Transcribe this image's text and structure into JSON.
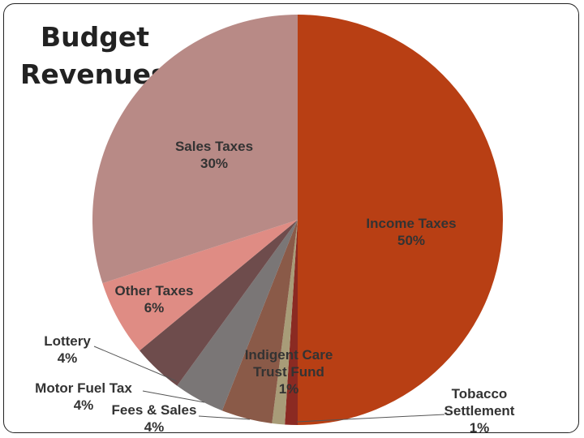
{
  "chart_data": {
    "type": "pie",
    "title_lines": [
      "Budget",
      "Revenues"
    ],
    "slices": [
      {
        "label_lines": [
          "Income Taxes",
          "50%"
        ],
        "value": 50,
        "color": "#b83f14"
      },
      {
        "label_lines": [
          "Tobacco",
          "Settlement",
          "1%"
        ],
        "value": 1,
        "color": "#8b2a22"
      },
      {
        "label_lines": [
          "Indigent Care",
          "Trust Fund",
          "1%"
        ],
        "value": 1,
        "color": "#a89c78"
      },
      {
        "label_lines": [
          "Fees & Sales",
          "4%"
        ],
        "value": 4,
        "color": "#8a5a48"
      },
      {
        "label_lines": [
          "Motor Fuel Tax",
          "4%"
        ],
        "value": 4,
        "color": "#7a7676"
      },
      {
        "label_lines": [
          "Lottery",
          "4%"
        ],
        "value": 4,
        "color": "#6e4c4c"
      },
      {
        "label_lines": [
          "Other Taxes",
          "6%"
        ],
        "value": 6,
        "color": "#df8c84"
      },
      {
        "label_lines": [
          "Sales Taxes",
          "30%"
        ],
        "value": 30,
        "color": "#b88a86"
      }
    ]
  }
}
